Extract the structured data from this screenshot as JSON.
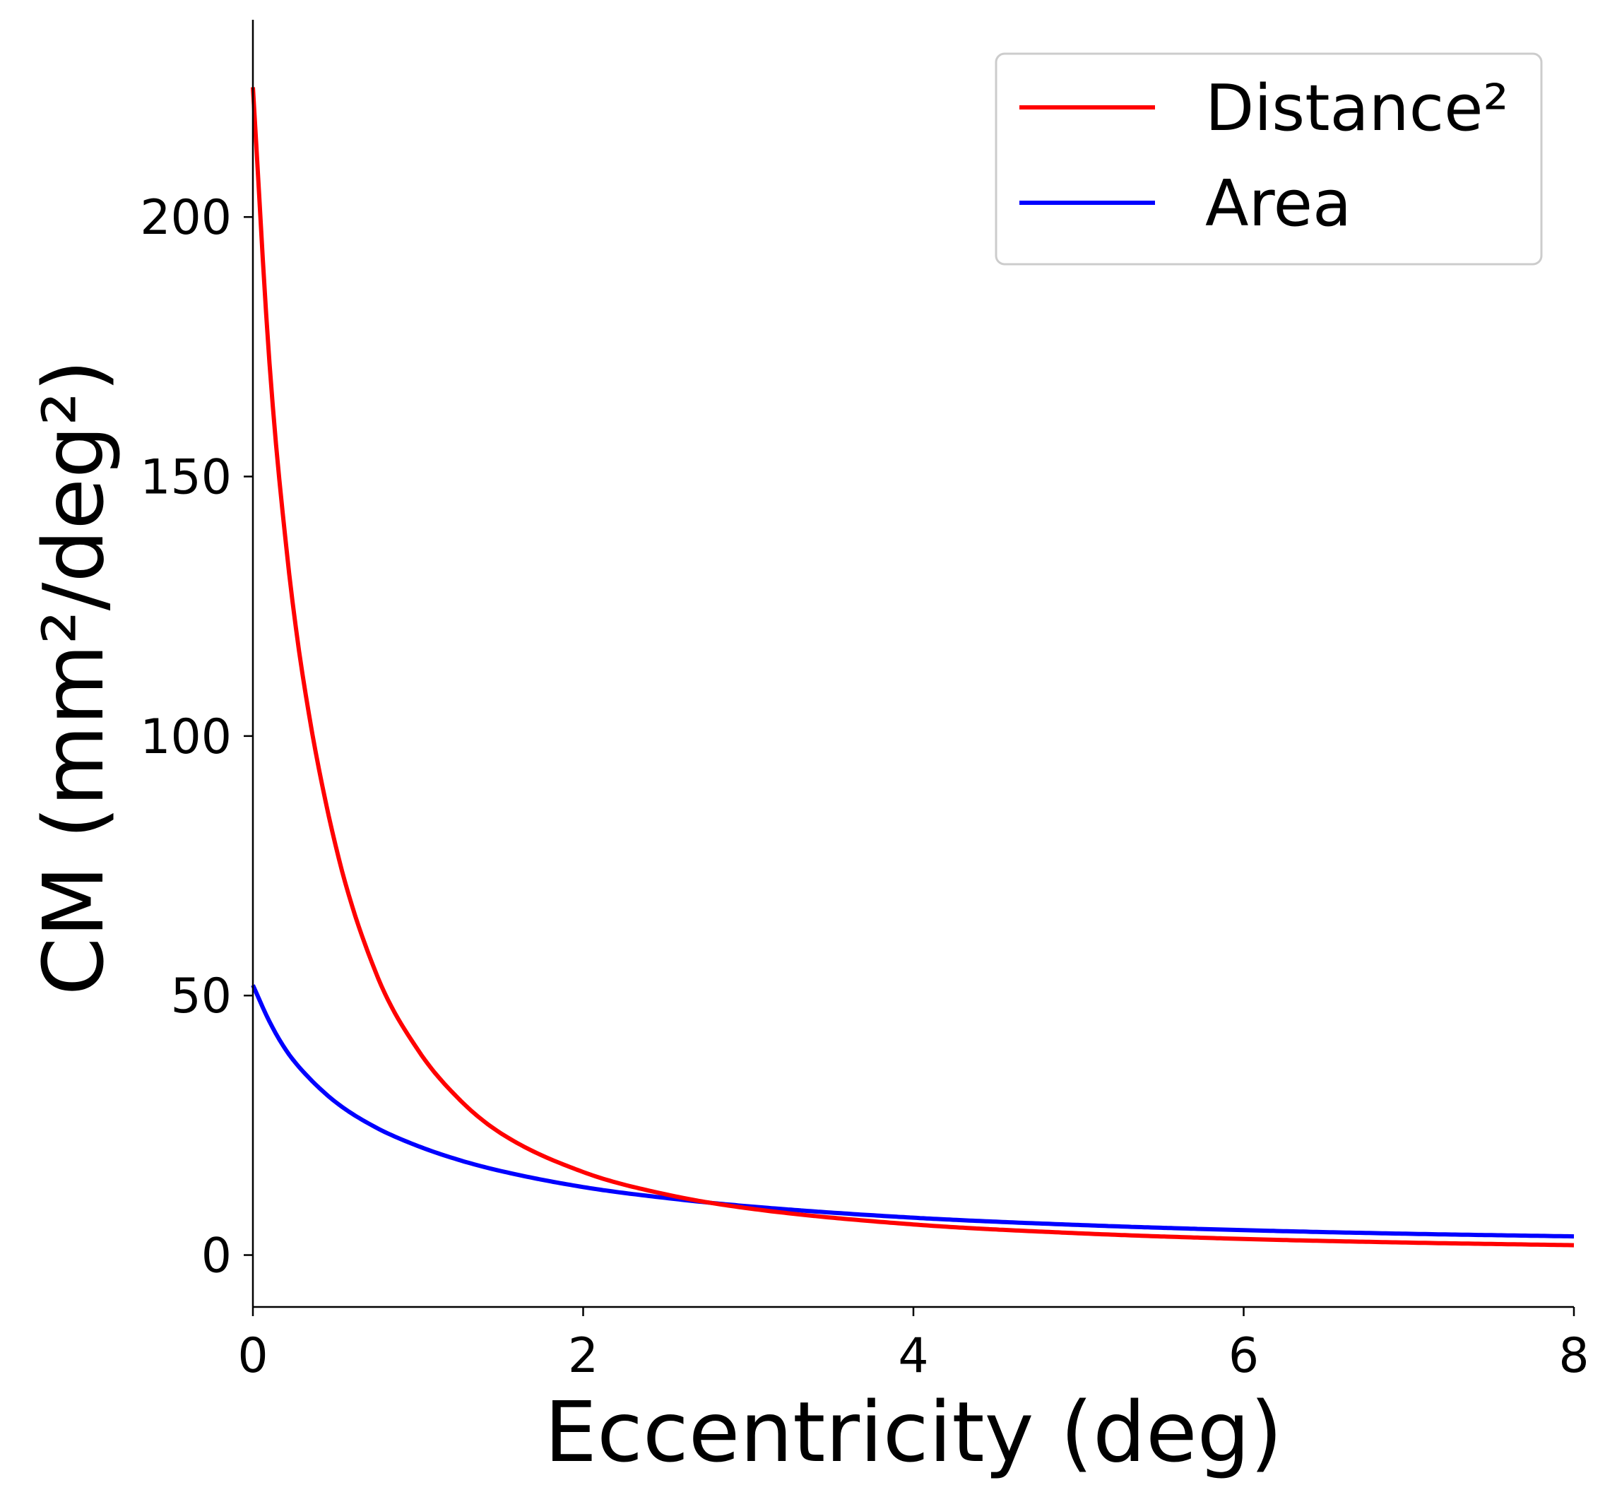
{
  "chart_data": {
    "type": "line",
    "title": "",
    "xlabel": "Eccentricity (deg)",
    "ylabel": "CM (mm²/deg²)",
    "xlim": [
      0,
      8
    ],
    "ylim": [
      -10,
      238
    ],
    "xticks": [
      0,
      2,
      4,
      6,
      8
    ],
    "xtick_labels": [
      "0",
      "2",
      "4",
      "6",
      "8"
    ],
    "yticks": [
      0,
      50,
      100,
      150,
      200
    ],
    "ytick_labels": [
      "0",
      "50",
      "100",
      "150",
      "200"
    ],
    "grid": false,
    "legend_position": "top-right",
    "x": [
      0,
      0.1,
      0.2,
      0.3,
      0.5,
      0.75,
      1.0,
      1.25,
      1.5,
      2.0,
      2.5,
      3.0,
      4.0,
      5.0,
      6.0,
      7.0,
      8.0
    ],
    "series": [
      {
        "name": "Distance²",
        "color": "#ff0000",
        "values": [
          225,
          172,
          137,
          112,
          79,
          54,
          39.5,
          30,
          23.5,
          16,
          11.7,
          9,
          5.9,
          4.2,
          3.1,
          2.4,
          1.9
        ]
      },
      {
        "name": "Area",
        "color": "#0000ff",
        "values": [
          52,
          45,
          39.5,
          35.5,
          29.5,
          24.5,
          21,
          18.3,
          16.2,
          13.1,
          11,
          9.4,
          7.2,
          5.8,
          4.8,
          4.1,
          3.6
        ]
      }
    ]
  }
}
